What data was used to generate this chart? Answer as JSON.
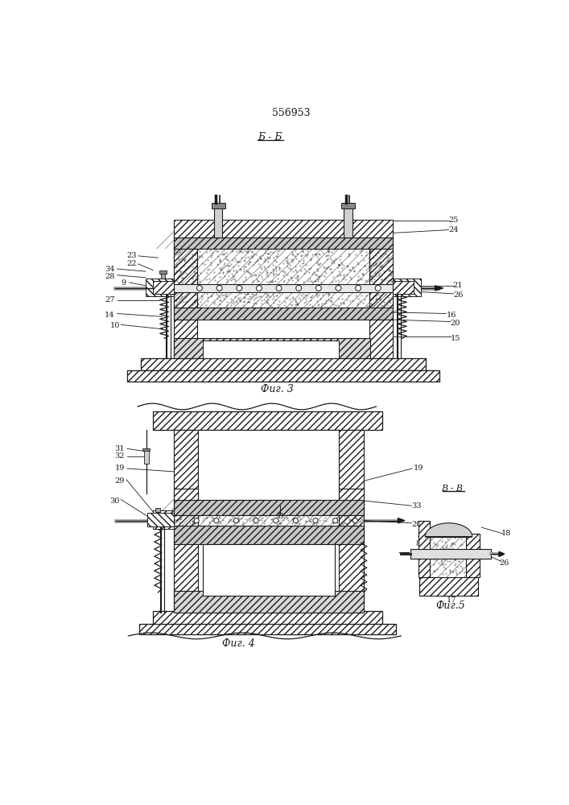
{
  "title": "556953",
  "fig3_label": "Б - Б",
  "fig3_caption": "Фиг. 3",
  "fig4_caption": "Фиг. 4",
  "fig5_label": "В - В",
  "fig5_caption": "Фиг.5",
  "bg_color": "#ffffff",
  "line_color": "#1a1a1a"
}
